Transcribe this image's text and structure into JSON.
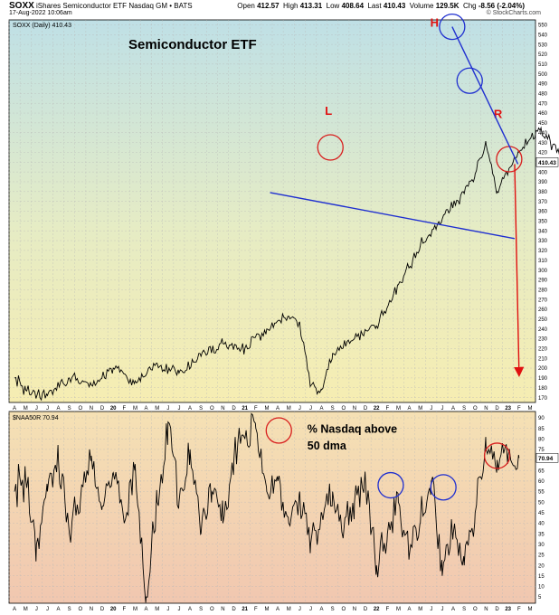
{
  "header": {
    "symbol": "SOXX",
    "name": "iShares Semiconductor ETF",
    "exchange": "Nasdaq GM",
    "source": "BATS",
    "date": "17-Aug-2022 10:06am",
    "open_label": "Open",
    "open": "412.57",
    "high_label": "High",
    "high": "413.31",
    "low_label": "Low",
    "low": "408.64",
    "last_label": "Last",
    "last": "410.43",
    "volume_label": "Volume",
    "volume": "129.5K",
    "chg_label": "Chg",
    "chg": "-8.56 (-2.04%)",
    "copyright": "© StockCharts.com"
  },
  "colors": {
    "price_line": "#000000",
    "trend_line": "#1f2fd0",
    "head_circle": "#1f2fd0",
    "shoulder_circle": "#d81e1e",
    "target_arrow": "#e01010",
    "label_red": "#e01010"
  },
  "chart_data": [
    {
      "type": "line",
      "legend": "SOXX (Daily) 410.43",
      "title": "Semiconductor ETF",
      "yaxis": "right",
      "ylim": [
        165,
        555
      ],
      "yticks": [
        170,
        180,
        190,
        200,
        210,
        220,
        230,
        240,
        250,
        260,
        270,
        280,
        290,
        300,
        310,
        320,
        330,
        340,
        350,
        360,
        370,
        380,
        390,
        400,
        410,
        420,
        430,
        440,
        450,
        460,
        470,
        480,
        490,
        500,
        510,
        520,
        530,
        540,
        550
      ],
      "last_value_label": "410.43",
      "x_months": [
        "A",
        "M",
        "J",
        "J",
        "A",
        "S",
        "O",
        "N",
        "D",
        "20",
        "F",
        "M",
        "A",
        "M",
        "J",
        "J",
        "A",
        "S",
        "O",
        "N",
        "D",
        "21",
        "F",
        "M",
        "A",
        "M",
        "J",
        "J",
        "A",
        "S",
        "O",
        "N",
        "D",
        "22",
        "F",
        "M",
        "A",
        "M",
        "J",
        "J",
        "A",
        "S",
        "O",
        "N",
        "D",
        "23",
        "F",
        "M"
      ],
      "series": [
        {
          "x": [
            0,
            1,
            3,
            5,
            7,
            9,
            11,
            13,
            15,
            17,
            19,
            21,
            23,
            25,
            26,
            27,
            28,
            29,
            31,
            33,
            35,
            37,
            39,
            41,
            42,
            43,
            44,
            46,
            48,
            50
          ],
          "y": [
            190,
            178,
            172,
            190,
            183,
            200,
            187,
            205,
            195,
            212,
            225,
            220,
            240,
            253,
            247,
            182,
            178,
            215,
            230,
            243,
            285,
            325,
            352,
            378,
            398,
            428,
            380,
            420,
            445,
            410
          ]
        }
      ],
      "annotations": [
        {
          "type": "text",
          "text": "L",
          "x": 28.3,
          "y": 458
        },
        {
          "type": "text",
          "text": "H",
          "x": 37.9,
          "y": 548
        },
        {
          "type": "text",
          "text": "R",
          "x": 43.7,
          "y": 455
        },
        {
          "type": "circle",
          "label": "left-shoulder",
          "x": 28.8,
          "y": 425
        },
        {
          "type": "circle",
          "label": "head",
          "x": 39.9,
          "y": 548
        },
        {
          "type": "circle",
          "label": "right-shoulder",
          "x": 45.1,
          "y": 413
        },
        {
          "type": "circle",
          "label": "peak-2",
          "x": 41.5,
          "y": 493
        },
        {
          "type": "line",
          "label": "neckline",
          "x": [
            23.3,
            45.6
          ],
          "y": [
            379,
            332
          ]
        },
        {
          "type": "line",
          "label": "downtrend",
          "x": [
            39.9,
            45.9
          ],
          "y": [
            548,
            408
          ]
        },
        {
          "type": "arrow",
          "label": "target",
          "x": [
            45.6,
            46.0
          ],
          "y": [
            408,
            196
          ]
        }
      ]
    },
    {
      "type": "line",
      "legend": "$NAA50R 70.94",
      "title": "% Nasdaq above 50 dma",
      "yaxis": "right",
      "ylim": [
        2,
        93
      ],
      "yticks": [
        5,
        10,
        15,
        20,
        25,
        30,
        35,
        40,
        45,
        50,
        55,
        60,
        65,
        70,
        75,
        80,
        85,
        90
      ],
      "last_value_label": "70.94",
      "x_months": [
        "A",
        "M",
        "J",
        "J",
        "A",
        "S",
        "O",
        "N",
        "D",
        "20",
        "F",
        "M",
        "A",
        "M",
        "J",
        "J",
        "A",
        "S",
        "O",
        "N",
        "D",
        "21",
        "F",
        "M",
        "A",
        "M",
        "J",
        "J",
        "A",
        "S",
        "O",
        "N",
        "D",
        "22",
        "F",
        "M",
        "A",
        "M",
        "J",
        "J",
        "A",
        "S",
        "O",
        "N",
        "D",
        "23",
        "F",
        "M"
      ],
      "series": [
        {
          "x": [
            0,
            1,
            2,
            3,
            4,
            5,
            6,
            7,
            8,
            9,
            10,
            11,
            12,
            13,
            14,
            15,
            16,
            17,
            18,
            19,
            20,
            21,
            22,
            23,
            24,
            25,
            26,
            27,
            28,
            29,
            30,
            31,
            32,
            33,
            34,
            35,
            36,
            37,
            38,
            39,
            40,
            41,
            42,
            43,
            44,
            45,
            46
          ],
          "y": [
            55,
            62,
            30,
            55,
            70,
            35,
            50,
            72,
            48,
            64,
            40,
            68,
            5,
            50,
            88,
            50,
            75,
            35,
            55,
            40,
            70,
            80,
            85,
            55,
            60,
            40,
            55,
            30,
            45,
            55,
            35,
            50,
            60,
            20,
            35,
            50,
            25,
            40,
            60,
            15,
            35,
            20,
            45,
            75,
            70,
            72,
            71
          ]
        }
      ],
      "annotations": [
        {
          "type": "text",
          "text": "% Nasdaq above",
          "x": 26.7,
          "y": 83
        },
        {
          "type": "text",
          "text": "50 dma",
          "x": 26.7,
          "y": 75
        },
        {
          "type": "circle",
          "label": "peak-2021",
          "x": 24.1,
          "y": 84
        },
        {
          "type": "circle",
          "label": "peak-nov-21",
          "x": 34.3,
          "y": 58
        },
        {
          "type": "circle",
          "label": "peak-mar-22",
          "x": 39.1,
          "y": 57
        },
        {
          "type": "circle",
          "label": "current",
          "x": 44.0,
          "y": 72
        }
      ]
    }
  ]
}
